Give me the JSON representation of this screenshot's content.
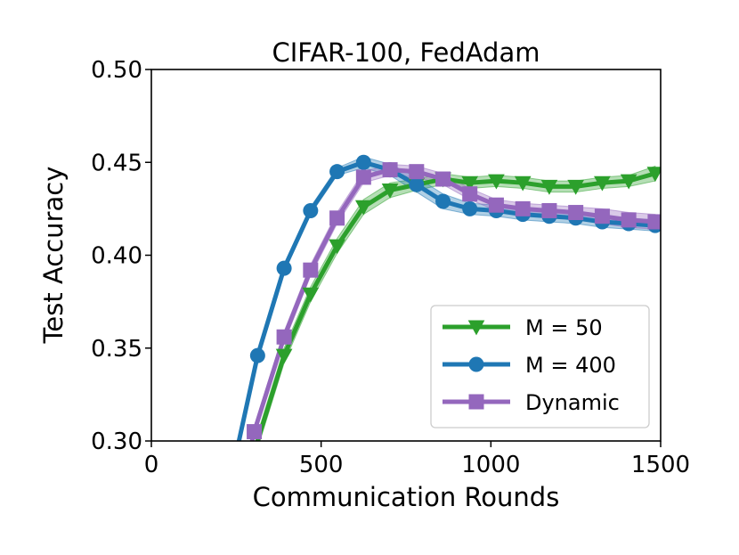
{
  "chart_data": {
    "type": "line",
    "title": "CIFAR-100, FedAdam",
    "xlabel": "Communication Rounds",
    "ylabel": "Test Accuracy",
    "xlim": [
      0,
      1500
    ],
    "ylim": [
      0.3,
      0.5
    ],
    "xticks": [
      0,
      500,
      1000,
      1500
    ],
    "xtick_labels": [
      "0",
      "500",
      "1000",
      "1500"
    ],
    "yticks": [
      0.3,
      0.35,
      0.4,
      0.45,
      0.5
    ],
    "ytick_labels": [
      "0.30",
      "0.35",
      "0.40",
      "0.45",
      "0.50"
    ],
    "grid": false,
    "legend_position": "bottom-right",
    "series": [
      {
        "name": "M = 50",
        "color": "#2ca02c",
        "marker": "triangle-down",
        "x": [
          234,
          313,
          391,
          469,
          547,
          625,
          703,
          781,
          859,
          938,
          1016,
          1094,
          1172,
          1250,
          1328,
          1406,
          1484
        ],
        "y": [
          0.25,
          0.3,
          0.346,
          0.379,
          0.405,
          0.426,
          0.435,
          0.438,
          0.441,
          0.439,
          0.44,
          0.439,
          0.437,
          0.437,
          0.439,
          0.44,
          0.444
        ],
        "band": [
          0.004,
          0.004,
          0.004,
          0.004,
          0.004,
          0.004,
          0.004,
          0.003,
          0.003,
          0.003,
          0.003,
          0.003,
          0.003,
          0.003,
          0.003,
          0.003,
          0.004
        ],
        "marker_from": 2
      },
      {
        "name": "M = 400",
        "color": "#1f77b4",
        "marker": "circle",
        "x": [
          234,
          313,
          391,
          469,
          547,
          625,
          703,
          781,
          859,
          938,
          1016,
          1094,
          1172,
          1250,
          1328,
          1406,
          1484
        ],
        "y": [
          0.28,
          0.346,
          0.393,
          0.424,
          0.445,
          0.45,
          0.446,
          0.438,
          0.429,
          0.425,
          0.424,
          0.422,
          0.421,
          0.42,
          0.418,
          0.417,
          0.416
        ],
        "band": [
          0.002,
          0.002,
          0.002,
          0.002,
          0.002,
          0.003,
          0.003,
          0.004,
          0.004,
          0.003,
          0.003,
          0.003,
          0.003,
          0.003,
          0.003,
          0.003,
          0.003
        ],
        "marker_from": 1
      },
      {
        "name": "Dynamic",
        "color": "#9467bd",
        "marker": "square",
        "x": [
          234,
          303,
          391,
          469,
          547,
          625,
          703,
          781,
          859,
          938,
          1016,
          1094,
          1172,
          1250,
          1328,
          1406,
          1484
        ],
        "y": [
          0.25,
          0.305,
          0.356,
          0.392,
          0.42,
          0.442,
          0.446,
          0.445,
          0.441,
          0.433,
          0.427,
          0.425,
          0.424,
          0.423,
          0.421,
          0.419,
          0.418
        ],
        "band": [
          0.003,
          0.003,
          0.003,
          0.003,
          0.003,
          0.003,
          0.003,
          0.003,
          0.003,
          0.003,
          0.003,
          0.003,
          0.003,
          0.003,
          0.004,
          0.004,
          0.004
        ],
        "marker_from": 1
      }
    ]
  }
}
